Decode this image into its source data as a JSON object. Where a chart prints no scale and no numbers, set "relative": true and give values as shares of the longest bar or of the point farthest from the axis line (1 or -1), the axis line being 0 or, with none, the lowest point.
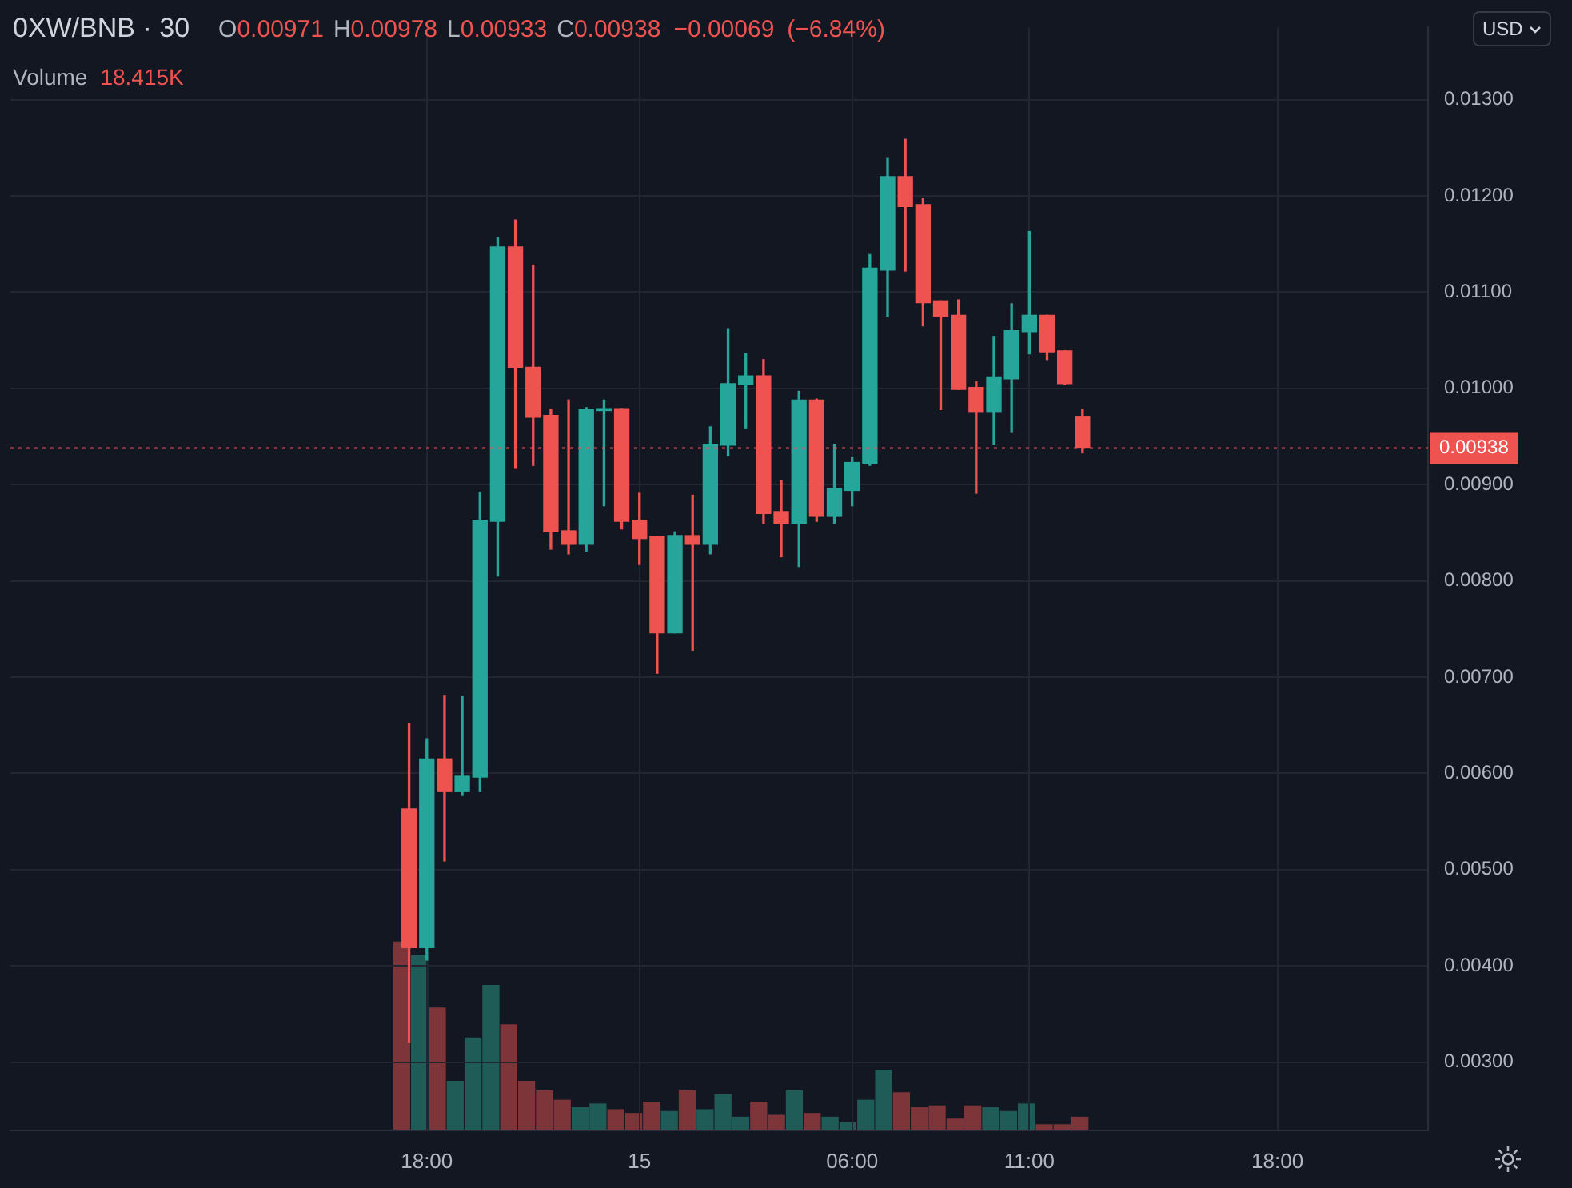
{
  "chart_data": [
    {
      "type": "candlestick",
      "title": "0XW/BNB · 30",
      "subtitle": "O0.00971 H0.00978 L0.00933 C0.00938 −0.00069 (−6.84%)",
      "categories": [
        null,
        null,
        null,
        null,
        null,
        null,
        null,
        null,
        null,
        null,
        null,
        null,
        null,
        null,
        null,
        null,
        null,
        null,
        null,
        null,
        null,
        null,
        null,
        "18:00",
        null,
        null,
        null,
        null,
        null,
        null,
        null,
        null,
        null,
        null,
        null,
        "15",
        null,
        null,
        null,
        null,
        null,
        null,
        null,
        null,
        null,
        null,
        null,
        "06:00",
        null,
        null,
        null,
        null,
        null,
        null,
        null,
        null,
        null,
        "11:00",
        null,
        null,
        null,
        null,
        null,
        null,
        null,
        null,
        null,
        null,
        null,
        null,
        null,
        "18:00",
        null,
        null,
        null,
        null,
        null,
        null,
        null,
        null
      ],
      "ohlc": [
        null,
        null,
        null,
        null,
        null,
        null,
        null,
        null,
        null,
        null,
        null,
        null,
        null,
        null,
        null,
        null,
        null,
        null,
        null,
        null,
        null,
        null,
        [
          0.00563,
          0.00652,
          0.0032,
          0.00419
        ],
        [
          0.00419,
          0.00636,
          0.00406,
          0.00615
        ],
        [
          0.00615,
          0.00681,
          0.00509,
          0.00581
        ],
        [
          0.00581,
          0.0068,
          0.00577,
          0.00597
        ],
        [
          0.00596,
          0.00892,
          0.00581,
          0.00863
        ],
        [
          0.00862,
          0.01157,
          0.00805,
          0.01147
        ],
        [
          0.01147,
          0.01175,
          0.00917,
          0.01022
        ],
        [
          0.01022,
          0.01128,
          0.0092,
          0.0097
        ],
        [
          0.00972,
          0.00978,
          0.00833,
          0.00851
        ],
        [
          0.00852,
          0.00988,
          0.00828,
          0.00838
        ],
        [
          0.00838,
          0.0098,
          0.00831,
          0.00978
        ],
        [
          0.00977,
          0.00988,
          0.00878,
          0.00979
        ],
        [
          0.00979,
          0.00979,
          0.00854,
          0.00862
        ],
        [
          0.00863,
          0.00891,
          0.00817,
          0.00844
        ],
        [
          0.00846,
          0.00846,
          0.00704,
          0.00746
        ],
        [
          0.00746,
          0.00851,
          0.00746,
          0.00847
        ],
        [
          0.00847,
          0.00889,
          0.00728,
          0.00838
        ],
        [
          0.00838,
          0.0096,
          0.00828,
          0.00942
        ],
        [
          0.00941,
          0.01062,
          0.0093,
          0.01005
        ],
        [
          0.01004,
          0.01036,
          0.00959,
          0.01013
        ],
        [
          0.01013,
          0.0103,
          0.0086,
          0.0087
        ],
        [
          0.00872,
          0.00904,
          0.00825,
          0.0086
        ],
        [
          0.0086,
          0.00997,
          0.00815,
          0.00988
        ],
        [
          0.00988,
          0.00989,
          0.00862,
          0.00867
        ],
        [
          0.00867,
          0.00942,
          0.0086,
          0.00896
        ],
        [
          0.00894,
          0.00928,
          0.00878,
          0.00923
        ],
        [
          0.00922,
          0.01139,
          0.0092,
          0.01125
        ],
        [
          0.01123,
          0.01239,
          0.01075,
          0.0122
        ],
        [
          0.0122,
          0.01259,
          0.01122,
          0.01189
        ],
        [
          0.01191,
          0.01197,
          0.01065,
          0.01089
        ],
        [
          0.01091,
          0.01091,
          0.00978,
          0.01075
        ],
        [
          0.01076,
          0.01092,
          0.00999,
          0.00999
        ],
        [
          0.01001,
          0.01007,
          0.00891,
          0.00976
        ],
        [
          0.00976,
          0.01054,
          0.00942,
          0.01012
        ],
        [
          0.0101,
          0.01088,
          0.00955,
          0.0106
        ],
        [
          0.01059,
          0.01163,
          0.01036,
          0.01076
        ],
        [
          0.01076,
          0.01076,
          0.0103,
          0.01038
        ],
        [
          0.01039,
          0.01039,
          0.01004,
          0.01005
        ],
        [
          0.00971,
          0.00978,
          0.00933,
          0.00938
        ],
        null,
        null,
        null,
        null,
        null,
        null,
        null,
        null,
        null,
        null,
        null,
        null,
        null,
        null,
        null,
        null,
        null,
        null,
        null
      ],
      "colors": [
        null,
        null,
        null,
        null,
        null,
        null,
        null,
        null,
        null,
        null,
        null,
        null,
        null,
        null,
        null,
        null,
        null,
        null,
        null,
        null,
        null,
        null,
        "#ef5350",
        "#26a69a",
        "#ef5350",
        "#26a69a",
        "#26a69a",
        "#26a69a",
        "#ef5350",
        "#ef5350",
        "#ef5350",
        "#ef5350",
        "#26a69a",
        "#26a69a",
        "#ef5350",
        "#ef5350",
        "#ef5350",
        "#26a69a",
        "#ef5350",
        "#26a69a",
        "#26a69a",
        "#26a69a",
        "#ef5350",
        "#ef5350",
        "#26a69a",
        "#ef5350",
        "#26a69a",
        "#26a69a",
        "#26a69a",
        "#26a69a",
        "#ef5350",
        "#ef5350",
        "#ef5350",
        "#ef5350",
        "#ef5350",
        "#26a69a",
        "#26a69a",
        "#26a69a",
        "#ef5350",
        "#ef5350",
        "#ef5350",
        null,
        null,
        null,
        null,
        null,
        null,
        null,
        null,
        null,
        null,
        null,
        null,
        null,
        null,
        null,
        null,
        null,
        null,
        null
      ],
      "ylim": [
        0.00229,
        0.01375
      ],
      "yticks": [
        {
          "value": 0.003,
          "label": "0.00300"
        },
        {
          "value": 0.004,
          "label": "0.00400"
        },
        {
          "value": 0.005,
          "label": "0.00500"
        },
        {
          "value": 0.006,
          "label": "0.00600"
        },
        {
          "value": 0.007,
          "label": "0.00700"
        },
        {
          "value": 0.008,
          "label": "0.00800"
        },
        {
          "value": 0.009,
          "label": "0.00900"
        },
        {
          "value": 0.01,
          "label": "0.01000"
        },
        {
          "value": 0.011,
          "label": "0.01100"
        },
        {
          "value": 0.012,
          "label": "0.01200"
        },
        {
          "value": 0.013,
          "label": "0.01300"
        }
      ],
      "ref_lines": [
        {
          "axis": "y",
          "value": 0.00938,
          "label": "0.00938",
          "color": "#ef5350",
          "line_style": "dotted"
        }
      ],
      "grid": true,
      "legend": false,
      "annotations": [
        "USD"
      ]
    },
    {
      "type": "bar",
      "relative": true,
      "title": "Volume",
      "annotations": [
        "18.415K"
      ],
      "categories": [
        null,
        null,
        null,
        null,
        null,
        null,
        null,
        null,
        null,
        null,
        null,
        null,
        null,
        null,
        null,
        null,
        null,
        null,
        null,
        null,
        null,
        null,
        null,
        null,
        null,
        null,
        null,
        null,
        null,
        null,
        null,
        null,
        null,
        null,
        null,
        null,
        null,
        null,
        null,
        null,
        null,
        null,
        null,
        null,
        null,
        null,
        null,
        null,
        null,
        null,
        null,
        null,
        null,
        null,
        null,
        null,
        null,
        null,
        null,
        null,
        null,
        null,
        null,
        null,
        null,
        null,
        null,
        null,
        null,
        null,
        null,
        null,
        null,
        null,
        null,
        null,
        null,
        null,
        null,
        null
      ],
      "values": [
        null,
        null,
        null,
        null,
        null,
        null,
        null,
        null,
        null,
        null,
        null,
        null,
        null,
        null,
        null,
        null,
        null,
        null,
        null,
        null,
        null,
        null,
        1,
        0.93,
        0.65,
        0.26,
        0.49,
        0.77,
        0.56,
        0.26,
        0.21,
        0.16,
        0.12,
        0.14,
        0.11,
        0.09,
        0.15,
        0.1,
        0.21,
        0.11,
        0.19,
        0.07,
        0.15,
        0.08,
        0.21,
        0.09,
        0.07,
        0.04,
        0.16,
        0.32,
        0.2,
        0.12,
        0.13,
        0.06,
        0.13,
        0.12,
        0.1,
        0.14,
        0.03,
        0.03,
        0.07,
        null,
        null,
        null,
        null,
        null,
        null,
        null,
        null,
        null,
        null,
        null,
        null,
        null,
        null,
        null,
        null,
        null,
        null,
        null
      ],
      "colors": [
        null,
        null,
        null,
        null,
        null,
        null,
        null,
        null,
        null,
        null,
        null,
        null,
        null,
        null,
        null,
        null,
        null,
        null,
        null,
        null,
        null,
        null,
        "#7e3539",
        "#1f5c58",
        "#7e3539",
        "#1f5c58",
        "#1f5c58",
        "#1f5c58",
        "#7e3539",
        "#7e3539",
        "#7e3539",
        "#7e3539",
        "#1f5c58",
        "#1f5c58",
        "#7e3539",
        "#7e3539",
        "#7e3539",
        "#1f5c58",
        "#7e3539",
        "#1f5c58",
        "#1f5c58",
        "#1f5c58",
        "#7e3539",
        "#7e3539",
        "#1f5c58",
        "#7e3539",
        "#1f5c58",
        "#1f5c58",
        "#1f5c58",
        "#1f5c58",
        "#7e3539",
        "#7e3539",
        "#7e3539",
        "#7e3539",
        "#7e3539",
        "#1f5c58",
        "#1f5c58",
        "#1f5c58",
        "#7e3539",
        "#7e3539",
        "#7e3539",
        null,
        null,
        null,
        null,
        null,
        null,
        null,
        null,
        null,
        null,
        null,
        null,
        null,
        null,
        null,
        null,
        null,
        null,
        null
      ],
      "legend": false
    }
  ]
}
